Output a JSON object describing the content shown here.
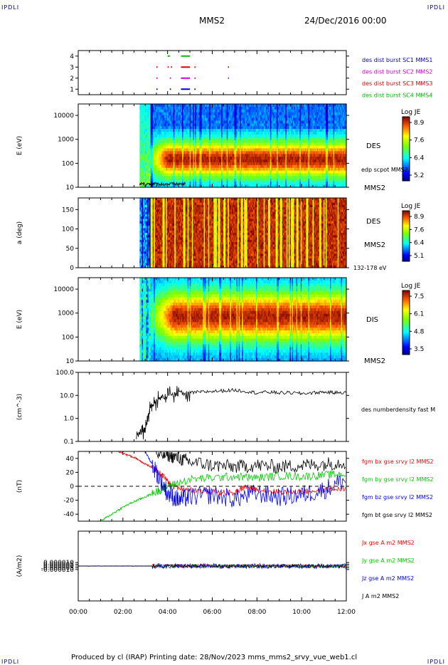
{
  "header": {
    "corner_left_top": "IPDLI",
    "corner_right_top": "IPDLI",
    "spacecraft": "MMS2",
    "datetime": "24/Dec/2016 00:00",
    "corner_left_bottom": "IPDLI",
    "corner_right_bottom": "IPDLI"
  },
  "footer": {
    "text": "Produced by cl (IRAP)   Printing date: 28/Nov/2023   mms_mms2_srvy_vue_web1.cl"
  },
  "colors": {
    "mms1": "#0000cc",
    "mms2": "#cc00cc",
    "mms3": "#dd0000",
    "mms4": "#00bb00",
    "bx": "#ff0000",
    "by": "#00cc00",
    "bz": "#0000ff",
    "bt": "#000000"
  },
  "chart_data": [
    {
      "type": "scatter",
      "name_panel": "burst-availability",
      "ylim": [
        0.5,
        4.5
      ],
      "yticks": [
        "1",
        "2",
        "3",
        "4"
      ],
      "series": [
        {
          "name": "des dist burst SC1 MMS1",
          "y": 1,
          "intervals": [
            [
              3.5,
              3.55
            ],
            [
              4.1,
              4.15
            ],
            [
              4.6,
              5.0
            ],
            [
              5.2,
              5.25
            ]
          ]
        },
        {
          "name": "des dist burst SC2 MMS2",
          "y": 2,
          "intervals": [
            [
              3.5,
              3.55
            ],
            [
              4.1,
              4.15
            ],
            [
              4.6,
              5.0
            ],
            [
              5.2,
              5.25
            ],
            [
              6.7,
              6.72
            ]
          ]
        },
        {
          "name": "des dist burst SC3 MMS3",
          "y": 3,
          "intervals": [
            [
              3.5,
              3.55
            ],
            [
              4.0,
              4.05
            ],
            [
              4.15,
              4.2
            ],
            [
              4.6,
              5.0
            ],
            [
              5.2,
              5.25
            ],
            [
              6.7,
              6.72
            ]
          ]
        },
        {
          "name": "des dist burst SC4 MMS4",
          "y": 4,
          "intervals": [
            [
              4.0,
              4.1
            ],
            [
              4.6,
              5.0
            ]
          ]
        }
      ]
    },
    {
      "type": "heatmap",
      "name_panel": "des-energy",
      "ylabel": "E (eV)",
      "yscale": "log",
      "ylim": [
        10,
        30000
      ],
      "yticks": [
        "10",
        "100",
        "1000",
        "10000"
      ],
      "data_start_hour": 2.75,
      "colorbar": {
        "title": "Log JE",
        "ticks": [
          "8.9",
          "7.6",
          "6.4",
          "5.2"
        ],
        "range": [
          5.2,
          8.9
        ]
      },
      "side_labels": [
        "DES",
        "edp scpot MMS2",
        "MMS2"
      ]
    },
    {
      "type": "heatmap",
      "name_panel": "des-pitch-angle",
      "ylabel": "a (deg)",
      "ylim": [
        0,
        180
      ],
      "yticks": [
        "0",
        "50",
        "100",
        "150"
      ],
      "data_start_hour": 2.75,
      "colorbar": {
        "title": "Log JE",
        "ticks": [
          "8.9",
          "7.6",
          "6.4",
          "5.1"
        ],
        "range": [
          5.1,
          8.9
        ]
      },
      "side_labels": [
        "DES",
        "MMS2",
        "132-178 eV"
      ]
    },
    {
      "type": "heatmap",
      "name_panel": "dis-energy",
      "ylabel": "E (eV)",
      "yscale": "log",
      "ylim": [
        10,
        30000
      ],
      "yticks": [
        "10",
        "100",
        "1000",
        "10000"
      ],
      "data_start_hour": 2.75,
      "colorbar": {
        "title": "Log JE",
        "ticks": [
          "7.5",
          "6.1",
          "4.8",
          "3.5"
        ],
        "range": [
          3.5,
          7.5
        ]
      },
      "side_labels": [
        "DIS",
        "MMS2"
      ]
    },
    {
      "type": "line",
      "name_panel": "density",
      "ylabel": "(cm^-3)",
      "yscale": "log",
      "ylim": [
        0.1,
        100
      ],
      "yticks": [
        "0.1",
        "1.0",
        "10.0",
        "100.0"
      ],
      "series": [
        {
          "name": "des numberdensity fast M",
          "x": [
            2.6,
            2.8,
            3.0,
            3.1,
            3.2,
            3.3,
            3.5,
            3.7,
            4.0,
            4.3,
            4.6,
            5.0,
            5.5,
            6.0,
            6.5,
            7.0,
            7.5,
            8.0,
            8.5,
            9.0,
            9.5,
            10.0,
            10.5,
            11.0,
            11.5,
            12.0
          ],
          "y": [
            0.2,
            0.25,
            0.3,
            0.8,
            2.0,
            4.0,
            5.0,
            8.0,
            10.0,
            11.0,
            12.0,
            13.0,
            14.0,
            15.0,
            16.0,
            17.0,
            15.0,
            13.0,
            14.0,
            13.0,
            13.0,
            12.0,
            13.0,
            14.0,
            13.0,
            14.0
          ]
        }
      ]
    },
    {
      "type": "line",
      "name_panel": "magnetic-field",
      "ylabel": "(nT)",
      "ylim": [
        -50,
        50
      ],
      "yticks": [
        "-40",
        "-20",
        "0",
        "20",
        "40"
      ],
      "series": [
        {
          "name": "fgm bx gse srvy l2 MMS2",
          "x": [
            1.8,
            2.2,
            2.6,
            3.0,
            3.4,
            3.8,
            4.2,
            5.0,
            6.0,
            7.0,
            7.5,
            8.0,
            9.0,
            10.0,
            11.0,
            12.0
          ],
          "y": [
            50,
            45,
            40,
            32,
            25,
            15,
            0,
            -5,
            -8,
            -10,
            0,
            -5,
            -8,
            -8,
            -5,
            -3
          ]
        },
        {
          "name": "fgm by gse srvy l2 MMS2",
          "x": [
            1.0,
            1.5,
            2.0,
            2.5,
            3.0,
            3.5,
            4.0,
            5.0,
            6.0,
            7.0,
            8.0,
            9.0,
            10.0,
            11.0,
            12.0
          ],
          "y": [
            -50,
            -40,
            -30,
            -22,
            -15,
            -8,
            0,
            10,
            12,
            14,
            12,
            15,
            14,
            16,
            18
          ]
        },
        {
          "name": "fgm bz gse srvy l2 MMS2",
          "x": [
            3.0,
            3.5,
            4.0,
            4.5,
            5.0,
            6.0,
            7.0,
            8.0,
            9.0,
            10.0,
            11.0,
            12.0
          ],
          "y": [
            50,
            20,
            -10,
            -20,
            -15,
            -12,
            -18,
            -10,
            -15,
            -12,
            -5,
            10
          ]
        },
        {
          "name": "fgm bt gse srvy l2 MMS2",
          "x": [
            3.5,
            4.0,
            4.5,
            5.0,
            6.0,
            7.0,
            8.0,
            9.0,
            10.0,
            11.0,
            12.0
          ],
          "y": [
            45,
            45,
            40,
            35,
            30,
            28,
            30,
            28,
            30,
            32,
            35
          ]
        }
      ]
    },
    {
      "type": "line",
      "name_panel": "current-density",
      "ylabel": "(A/m2)",
      "ylim": [
        -0.0001,
        0.0001
      ],
      "yticks": [
        "-0.000010",
        "-0.000005",
        "0.000000",
        "0.000005",
        "0.000010"
      ],
      "series": [
        {
          "name": "Jx gse A m2 MMS2"
        },
        {
          "name": "Jy gse A m2 MMS2"
        },
        {
          "name": "Jz gse A m2 MMS2"
        },
        {
          "name": "J A m2 MMS2"
        }
      ],
      "xticks": [
        "00:00",
        "02:00",
        "04:00",
        "06:00",
        "08:00",
        "10:00",
        "12:00"
      ],
      "xlim_hours": [
        0,
        12
      ]
    }
  ]
}
